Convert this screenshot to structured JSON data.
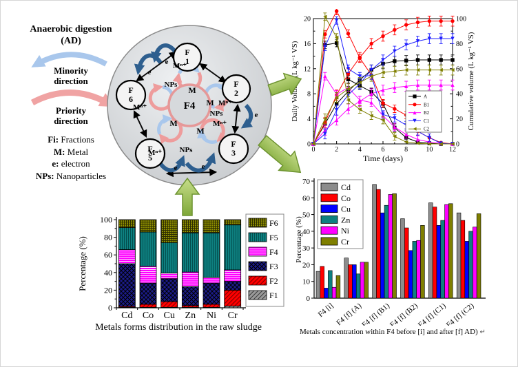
{
  "figure": {
    "ad_legend": {
      "title_line1": "Anaerobic digestion",
      "title_line2": "(AD)",
      "minority": {
        "line1": "Minority",
        "line2": "direction"
      },
      "priority": {
        "line1": "Priority",
        "line2": "direction"
      },
      "definitions": [
        {
          "key": "Fi:",
          "desc": "Fractions"
        },
        {
          "key": "M:",
          "desc": "Metal"
        },
        {
          "key": "e:",
          "desc": "electron"
        },
        {
          "key": "NPs:",
          "desc": "Nanoparticles"
        }
      ],
      "minority_color": "#a9c7ec",
      "priority_color": "#f0a3a3"
    },
    "diagram": {
      "center_label": "F4",
      "center_label_color": "#ff0000",
      "nodes": [
        {
          "line1": "F",
          "line2": "1"
        },
        {
          "line1": "F",
          "line2": "2"
        },
        {
          "line1": "F",
          "line2": "3"
        },
        {
          "line1": "F",
          "line2": "5"
        },
        {
          "line1": "F",
          "line2": "6"
        }
      ],
      "labels": {
        "metal": "M",
        "metal_ion": "Mⁿ⁺",
        "nps": "NPs",
        "electron": "e"
      }
    }
  },
  "chart_data": [
    {
      "type": "line",
      "name": "biogas-production",
      "x": [
        0,
        1,
        2,
        3,
        4,
        5,
        6,
        7,
        8,
        9,
        10,
        11,
        12
      ],
      "x_ticks": [
        0,
        2,
        4,
        6,
        8,
        10,
        12
      ],
      "xlabel": "Time (days)",
      "left_axis": {
        "label": "Daily Volume (L kg⁻¹ VS)",
        "ticks": [
          0,
          4,
          8,
          12,
          16,
          20
        ],
        "max": 20
      },
      "right_axis": {
        "label": "Cumulative volume (L kg⁻¹ VS)",
        "ticks": [
          0,
          20,
          40,
          60,
          80,
          100
        ],
        "max": 100
      },
      "legend_position": "right-center",
      "series": [
        {
          "name": "A",
          "color": "#000000",
          "marker": "square",
          "daily": [
            0,
            15.8,
            16.1,
            10.3,
            9.3,
            8.3,
            6.4,
            2.6,
            1.0,
            0.3,
            0.1,
            0,
            0
          ],
          "cumulative": [
            0,
            16,
            32,
            42,
            51,
            59,
            64,
            66,
            66.5,
            67,
            67,
            67,
            67
          ],
          "daily_err": 0.6,
          "cum_err": 4
        },
        {
          "name": "B1",
          "color": "#ff0000",
          "marker": "circle",
          "daily": [
            0,
            17.5,
            21.2,
            17.6,
            13.7,
            11.0,
            6.5,
            5.6,
            4.6,
            2.0,
            1.0,
            0.2,
            0
          ],
          "cumulative": [
            0,
            17,
            39,
            56,
            69,
            80,
            86,
            91,
            95,
            97,
            98,
            98,
            98
          ],
          "daily_err": 0.6,
          "cum_err": 4
        },
        {
          "name": "B2",
          "color": "#ff00ff",
          "marker": "triangle-up",
          "daily": [
            0,
            10.8,
            7.9,
            9.0,
            7.0,
            6.6,
            4.5,
            2.7,
            1.5,
            0.7,
            0.3,
            0.1,
            0
          ],
          "cumulative": [
            0,
            11,
            19,
            28,
            34,
            40,
            43,
            45,
            46,
            47,
            47,
            47,
            47
          ],
          "daily_err": 0.6,
          "cum_err": 4
        },
        {
          "name": "C1",
          "color": "#1f1fff",
          "marker": "triangle-down",
          "daily": [
            0,
            15.5,
            19.7,
            12.0,
            10.8,
            10.9,
            4.7,
            4.1,
            3.0,
            2.0,
            1.0,
            0.1,
            0
          ],
          "cumulative": [
            0,
            8,
            27,
            39,
            48,
            59,
            67,
            74,
            79,
            82,
            84,
            84,
            84
          ],
          "daily_err": 0.6,
          "cum_err": 4
        },
        {
          "name": "C2",
          "color": "#7f7f00",
          "marker": "triangle-left",
          "daily": [
            0,
            20.3,
            17.0,
            7.0,
            5.5,
            4.5,
            3.8,
            1.2,
            0.3,
            0.1,
            0,
            0,
            0
          ],
          "cumulative": [
            0,
            20,
            37,
            44,
            49,
            54,
            57,
            58,
            59,
            59,
            59,
            59,
            59
          ],
          "daily_err": 0.6,
          "cum_err": 4
        }
      ]
    },
    {
      "type": "bar",
      "subtype": "stacked",
      "name": "metal-forms-raw-sludge",
      "categories": [
        "Cd",
        "Co",
        "Cu",
        "Zn",
        "Ni",
        "Cr"
      ],
      "ylabel": "Percentage (%)",
      "yticks": [
        0,
        20,
        40,
        60,
        80,
        100
      ],
      "ylim": [
        0,
        100
      ],
      "caption": "Metals forms distribution in the raw sludge",
      "series": [
        {
          "name": "F1",
          "color": "#9a9a9a",
          "pattern": "diagonal",
          "pattern_color": "#3a3a3a",
          "values": [
            0.5,
            0.5,
            0.5,
            0.5,
            0.5,
            2
          ]
        },
        {
          "name": "F2",
          "color": "#ff0000",
          "pattern": "diagonal",
          "pattern_color": "#7a0000",
          "values": [
            1,
            3.5,
            6.5,
            2,
            3.5,
            18
          ]
        },
        {
          "name": "F3",
          "color": "#1c1c8a",
          "pattern": "crosshatch",
          "pattern_color": "#000000",
          "values": [
            48.5,
            24,
            26,
            21.5,
            24,
            10
          ]
        },
        {
          "name": "F4",
          "color": "#ff00ff",
          "pattern": "horizontal",
          "pattern_color": "#ffd6ff",
          "values": [
            16,
            19,
            6.5,
            16.5,
            6.5,
            13
          ]
        },
        {
          "name": "F5",
          "color": "#0e8080",
          "pattern": "vertical",
          "pattern_color": "#024d4d",
          "values": [
            25,
            39,
            34.5,
            44.5,
            50.5,
            51
          ]
        },
        {
          "name": "F6",
          "color": "#8f8f00",
          "pattern": "grid",
          "pattern_color": "#2e2e00",
          "values": [
            9,
            14,
            26,
            15,
            15,
            6
          ]
        }
      ]
    },
    {
      "type": "bar",
      "subtype": "grouped",
      "name": "f4-metal-concentration",
      "categories": [
        "F4 [i]",
        "F4 [f] (A)",
        "F4 [f] (B1)",
        "F4 [f] (B2)",
        "F4 [f] (C1)",
        "F4 [f] (C2)"
      ],
      "ylabel": "Percentage (%)",
      "yticks": [
        0,
        10,
        20,
        30,
        40,
        50,
        60,
        70
      ],
      "ylim": [
        0,
        70
      ],
      "caption": "Metals concentration within F4  before [i] and after [f] AD)",
      "caption_mark": "↵",
      "series": [
        {
          "name": "Cd",
          "color": "#8c8c8c",
          "values": [
            16,
            24,
            68,
            47.5,
            57,
            51
          ]
        },
        {
          "name": "Co",
          "color": "#ff0000",
          "values": [
            19,
            20,
            65,
            42,
            54.5,
            46.5
          ]
        },
        {
          "name": "Cu",
          "color": "#0000ff",
          "values": [
            6,
            20,
            51,
            28.5,
            43.5,
            34
          ]
        },
        {
          "name": "Zn",
          "color": "#0e8080",
          "values": [
            16.5,
            14.5,
            55.5,
            34,
            46.5,
            40
          ]
        },
        {
          "name": "Ni",
          "color": "#ff00ff",
          "values": [
            6.5,
            21.5,
            62,
            34.5,
            56,
            42.5
          ]
        },
        {
          "name": "Cr",
          "color": "#7f7f00",
          "values": [
            13.5,
            21.5,
            62.5,
            43.5,
            56.5,
            50.5
          ]
        }
      ]
    }
  ]
}
